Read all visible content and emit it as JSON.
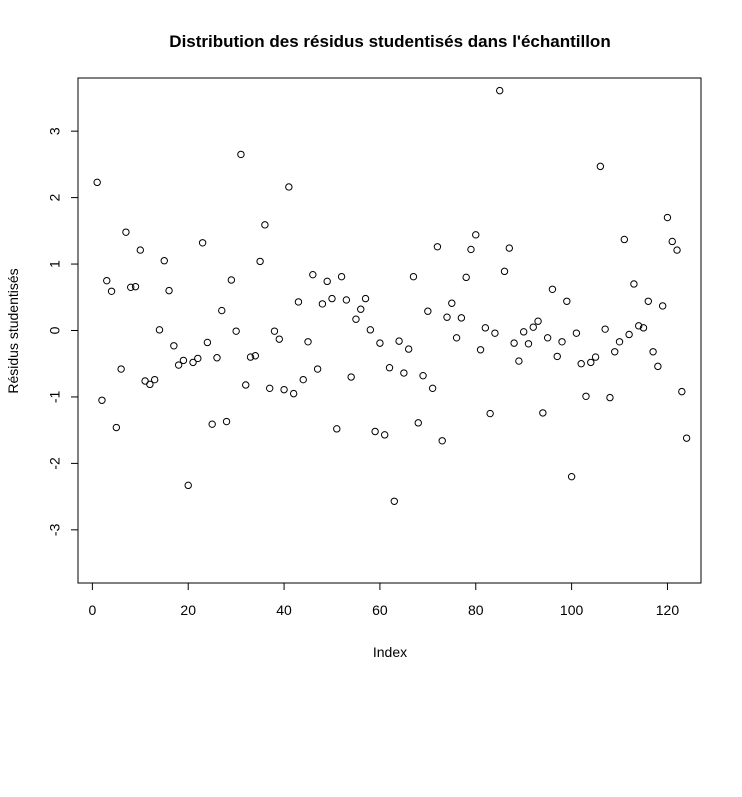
{
  "chart_data": {
    "type": "scatter",
    "title": "Distribution des résidus studentisés dans l'échantillon",
    "xlabel": "Index",
    "ylabel": "Résidus studentisés",
    "xlim": [
      -3,
      127
    ],
    "ylim": [
      -3.8,
      3.8
    ],
    "x_ticks": [
      0,
      20,
      40,
      60,
      80,
      100,
      120
    ],
    "y_ticks": [
      -3,
      -2,
      -1,
      0,
      1,
      2,
      3
    ],
    "x_tick_labels": [
      "0",
      "20",
      "40",
      "60",
      "80",
      "100",
      "120"
    ],
    "y_tick_labels": [
      "-3",
      "-2",
      "-1",
      "0",
      "1",
      "2",
      "3"
    ],
    "grid": false,
    "marker": "open-circle",
    "color": "#000000",
    "y": [
      2.23,
      -1.05,
      0.75,
      0.59,
      -1.46,
      -0.58,
      1.48,
      0.65,
      0.66,
      1.21,
      -0.76,
      -0.81,
      -0.74,
      0.01,
      1.05,
      0.6,
      -0.23,
      -0.52,
      -0.45,
      -2.33,
      -0.48,
      -0.42,
      1.32,
      -0.18,
      -1.41,
      -0.41,
      0.3,
      -1.37,
      0.76,
      -0.01,
      2.65,
      -0.82,
      -0.4,
      -0.38,
      1.04,
      1.59,
      -0.87,
      -0.01,
      -0.13,
      -0.89,
      2.16,
      -0.95,
      0.43,
      -0.74,
      -0.17,
      0.84,
      -0.58,
      0.4,
      0.74,
      0.48,
      -1.48,
      0.81,
      0.46,
      -0.7,
      0.17,
      0.32,
      0.48,
      0.01,
      -1.52,
      -0.19,
      -1.57,
      -0.56,
      -2.57,
      -0.16,
      -0.64,
      -0.28,
      0.81,
      -1.39,
      -0.68,
      0.29,
      -0.87,
      1.26,
      -1.66,
      0.2,
      0.41,
      -0.11,
      0.19,
      0.8,
      1.22,
      1.44,
      -0.29,
      0.04,
      -1.25,
      -0.04,
      3.61,
      0.89,
      1.24,
      -0.19,
      -0.46,
      -0.02,
      -0.2,
      0.05,
      0.14,
      -1.24,
      -0.11,
      0.62,
      -0.39,
      -0.17,
      0.44,
      -2.2,
      -0.04,
      -0.5,
      -0.99,
      -0.48,
      -0.4,
      2.47,
      0.02,
      -1.01,
      -0.32,
      -0.17,
      1.37,
      -0.06,
      0.7,
      0.07,
      0.04,
      0.44,
      -0.32,
      -0.54,
      0.37,
      1.7,
      1.34,
      1.21,
      -0.92,
      -1.62
    ]
  }
}
